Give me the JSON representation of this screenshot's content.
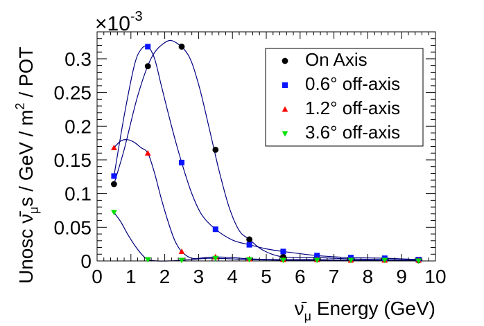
{
  "chart_data": {
    "type": "scatter",
    "xlabel_symbol": "ν̄",
    "xlabel_sub": "μ",
    "xlabel_rest": " Energy (GeV)",
    "ylabel_prefix": "Unosc ",
    "ylabel_symbol": "ν̄",
    "ylabel_sub": "μ",
    "ylabel_mid": "s / GeV / m",
    "ylabel_sup": "2",
    "ylabel_end": " / POT",
    "exponent_base": "×10",
    "exponent_power": "-3",
    "xlim": [
      0,
      10
    ],
    "ylim": [
      0,
      0.34
    ],
    "x_ticks": [
      "0",
      "1",
      "2",
      "3",
      "4",
      "5",
      "6",
      "7",
      "8",
      "9",
      "10"
    ],
    "y_ticks": [
      "0",
      "0.05",
      "0.1",
      "0.15",
      "0.2",
      "0.25",
      "0.3"
    ],
    "y_tick_values": [
      0,
      0.05,
      0.1,
      0.15,
      0.2,
      0.25,
      0.3
    ],
    "legend_position": "top-right",
    "x": [
      0.5,
      1.5,
      2.5,
      3.5,
      4.5,
      5.5,
      6.5,
      7.5,
      8.5,
      9.5
    ],
    "series": [
      {
        "name": "On Axis",
        "color": "#000000",
        "marker": "circle",
        "values": [
          0.114,
          0.289,
          0.318,
          0.165,
          0.032,
          0.006,
          0.005,
          0.003,
          0.002,
          0.001
        ],
        "curve_x": [
          0.5,
          0.8,
          1.2,
          1.6,
          2.0,
          2.3,
          2.7,
          3.0,
          3.3,
          3.6,
          3.9,
          4.2,
          4.5,
          4.9,
          5.5,
          6.5,
          7.5,
          8.5,
          9.5
        ],
        "curve_y": [
          0.114,
          0.165,
          0.245,
          0.301,
          0.324,
          0.325,
          0.305,
          0.262,
          0.2,
          0.135,
          0.08,
          0.045,
          0.032,
          0.016,
          0.006,
          0.005,
          0.003,
          0.002,
          0.001
        ]
      },
      {
        "name": "0.6° off-axis",
        "color": "#0a14ff",
        "marker": "square",
        "values": [
          0.126,
          0.318,
          0.146,
          0.047,
          0.024,
          0.014,
          0.008,
          0.005,
          0.004,
          0.002
        ],
        "curve_x": [
          0.5,
          0.8,
          1.1,
          1.3,
          1.5,
          1.7,
          1.9,
          2.2,
          2.5,
          2.8,
          3.1,
          3.5,
          4.0,
          4.5,
          5.0,
          5.5,
          6.5,
          7.5,
          8.5,
          9.5
        ],
        "curve_y": [
          0.126,
          0.215,
          0.29,
          0.314,
          0.318,
          0.3,
          0.26,
          0.2,
          0.146,
          0.1,
          0.068,
          0.047,
          0.031,
          0.024,
          0.018,
          0.014,
          0.008,
          0.005,
          0.004,
          0.002
        ]
      },
      {
        "name": "1.2° off-axis",
        "color": "#ff0000",
        "marker": "triangle-up",
        "values": [
          0.168,
          0.16,
          0.014,
          0.006,
          0.003,
          0.002,
          0.002,
          0.001,
          0.001,
          0.001
        ],
        "curve_x": [
          0.5,
          0.7,
          0.9,
          1.1,
          1.3,
          1.5,
          1.7,
          1.9,
          2.1,
          2.3,
          2.5,
          2.8,
          3.2,
          3.5,
          4.0,
          4.5,
          5.5,
          6.5,
          7.5,
          8.5,
          9.5
        ],
        "curve_y": [
          0.168,
          0.178,
          0.18,
          0.176,
          0.168,
          0.16,
          0.13,
          0.092,
          0.058,
          0.03,
          0.014,
          0.004,
          0.005,
          0.006,
          0.005,
          0.003,
          0.002,
          0.002,
          0.001,
          0.001,
          0.001
        ]
      },
      {
        "name": "3.6° off-axis",
        "color": "#00e000",
        "marker": "triangle-down",
        "values": [
          0.072,
          0.002,
          0.001,
          0.004,
          0.002,
          0.001,
          0.001,
          0.001,
          0.001,
          0.0
        ],
        "curve_x": [
          0.5,
          0.7,
          0.9,
          1.1,
          1.3,
          1.5,
          1.8,
          2.1,
          2.5,
          3.0,
          3.5,
          4.5,
          5.5,
          6.5,
          7.5,
          8.5,
          9.5
        ],
        "curve_y": [
          0.072,
          0.058,
          0.04,
          0.024,
          0.011,
          0.002,
          0.0,
          0.0,
          0.001,
          0.003,
          0.004,
          0.002,
          0.001,
          0.001,
          0.001,
          0.001,
          0.0
        ]
      }
    ]
  }
}
